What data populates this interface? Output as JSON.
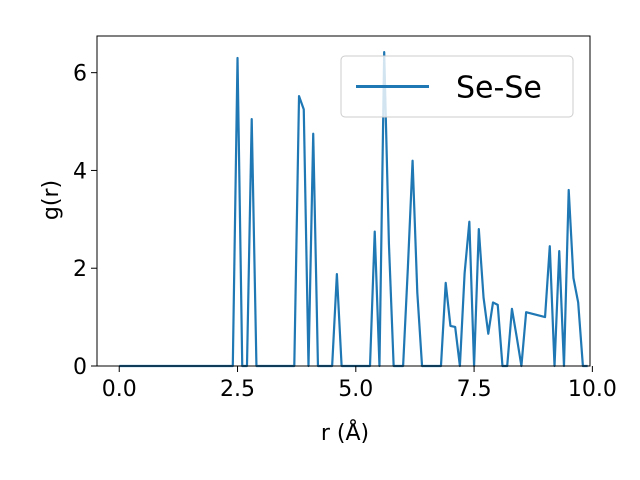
{
  "chart_data": {
    "type": "line",
    "xlabel": "r (Å)",
    "ylabel": "g(r)",
    "xlim": [
      -0.47,
      9.95
    ],
    "ylim": [
      0,
      6.75
    ],
    "x_ticks": [
      "0.0",
      "2.5",
      "5.0",
      "7.5",
      "10.0"
    ],
    "x_tick_values": [
      0,
      2.5,
      5,
      7.5,
      10
    ],
    "y_ticks": [
      "0",
      "2",
      "4",
      "6"
    ],
    "y_tick_values": [
      0,
      2,
      4,
      6
    ],
    "grid": false,
    "legend": {
      "position": "top-right",
      "entries": [
        "Se-Se"
      ]
    },
    "series": [
      {
        "name": "Se-Se",
        "color": "#1f77b4",
        "points": [
          [
            0.0,
            0.0
          ],
          [
            2.4,
            0.0
          ],
          [
            2.5,
            6.3
          ],
          [
            2.6,
            0.0
          ],
          [
            2.7,
            0.0
          ],
          [
            2.8,
            5.05
          ],
          [
            2.9,
            0.0
          ],
          [
            3.7,
            0.0
          ],
          [
            3.8,
            5.52
          ],
          [
            3.9,
            5.25
          ],
          [
            4.0,
            0.0
          ],
          [
            4.1,
            4.75
          ],
          [
            4.2,
            0.0
          ],
          [
            4.5,
            0.0
          ],
          [
            4.6,
            1.88
          ],
          [
            4.7,
            0.0
          ],
          [
            5.3,
            0.0
          ],
          [
            5.4,
            2.75
          ],
          [
            5.5,
            0.0
          ],
          [
            5.6,
            6.42
          ],
          [
            5.7,
            2.5
          ],
          [
            5.8,
            0.0
          ],
          [
            6.0,
            0.0
          ],
          [
            6.1,
            2.0
          ],
          [
            6.2,
            4.2
          ],
          [
            6.3,
            1.5
          ],
          [
            6.4,
            0.0
          ],
          [
            6.8,
            0.0
          ],
          [
            6.9,
            1.7
          ],
          [
            7.0,
            0.82
          ],
          [
            7.1,
            0.8
          ],
          [
            7.2,
            0.0
          ],
          [
            7.3,
            1.9
          ],
          [
            7.4,
            2.95
          ],
          [
            7.5,
            0.0
          ],
          [
            7.6,
            2.8
          ],
          [
            7.7,
            1.4
          ],
          [
            7.8,
            0.66
          ],
          [
            7.9,
            1.3
          ],
          [
            8.0,
            1.25
          ],
          [
            8.1,
            0.0
          ],
          [
            8.2,
            0.0
          ],
          [
            8.3,
            1.17
          ],
          [
            8.4,
            0.6
          ],
          [
            8.5,
            0.0
          ],
          [
            8.6,
            1.1
          ],
          [
            9.0,
            1.0
          ],
          [
            9.1,
            2.45
          ],
          [
            9.2,
            0.0
          ],
          [
            9.3,
            2.35
          ],
          [
            9.4,
            0.0
          ],
          [
            9.5,
            3.6
          ],
          [
            9.6,
            1.8
          ],
          [
            9.7,
            1.3
          ],
          [
            9.8,
            0.0
          ],
          [
            9.9,
            0.0
          ]
        ]
      }
    ]
  }
}
